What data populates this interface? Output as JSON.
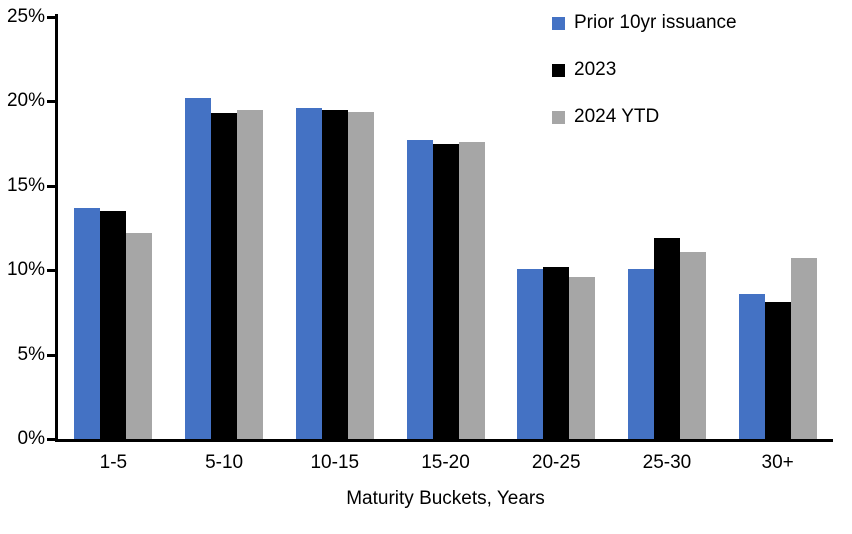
{
  "chart_data": {
    "type": "bar",
    "categories": [
      "1-5",
      "5-10",
      "10-15",
      "15-20",
      "20-25",
      "25-30",
      "30+"
    ],
    "series": [
      {
        "name": "Prior 10yr issuance",
        "color": "#4472C4",
        "values": [
          13.7,
          20.2,
          19.6,
          17.7,
          10.1,
          10.1,
          8.6
        ]
      },
      {
        "name": "2023",
        "color": "#000000",
        "values": [
          13.5,
          19.3,
          19.5,
          17.5,
          10.2,
          11.9,
          8.1
        ]
      },
      {
        "name": "2024 YTD",
        "color": "#A6A6A6",
        "values": [
          12.2,
          19.5,
          19.4,
          17.6,
          9.6,
          11.1,
          10.7
        ]
      }
    ],
    "title": "",
    "xlabel": "Maturity Buckets, Years",
    "ylabel": "",
    "ylim": [
      0,
      25
    ],
    "ytick_step": 5,
    "ytick_labels": [
      "0%",
      "5%",
      "10%",
      "15%",
      "20%",
      "25%"
    ],
    "grid": false,
    "legend_position": "top-right",
    "axis_color": "#000000",
    "background_color": "#FFFFFF"
  }
}
